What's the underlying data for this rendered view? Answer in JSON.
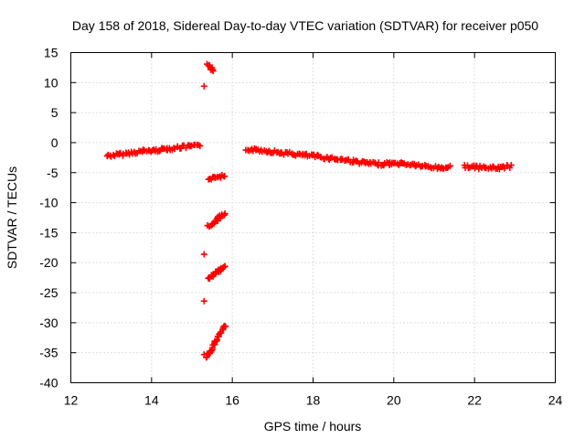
{
  "chart_data": {
    "type": "scatter",
    "title": "Day 158 of 2018, Sidereal Day-to-day VTEC variation (SDTVAR) for receiver p050",
    "xlabel": "GPS time / hours",
    "ylabel": "SDTVAR / TECUs",
    "xlim": [
      12,
      24
    ],
    "ylim": [
      -40,
      15
    ],
    "xticks": [
      "12",
      "14",
      "16",
      "18",
      "20",
      "22",
      "24"
    ],
    "yticks": [
      "15",
      "10",
      "5",
      "0",
      "-5",
      "-10",
      "-15",
      "-20",
      "-25",
      "-30",
      "-35",
      "-40"
    ],
    "grid": true,
    "marker": "+",
    "color": "#ff0000",
    "series": [
      {
        "name": "p050",
        "segments": [
          {
            "x": [
              12.9,
              13.2,
              13.5,
              13.8,
              14.1,
              14.4,
              14.7,
              15.0,
              15.2
            ],
            "y": [
              -2.2,
              -2.0,
              -1.7,
              -1.4,
              -1.3,
              -1.0,
              -0.8,
              -0.6,
              -0.6
            ]
          },
          {
            "x": [
              16.35,
              16.6,
              16.9,
              17.2,
              17.5,
              17.8,
              18.1,
              18.4,
              18.7,
              19.0,
              19.3,
              19.6,
              19.9,
              20.2,
              20.5,
              20.8,
              21.1,
              21.4
            ],
            "y": [
              -1.1,
              -1.2,
              -1.4,
              -1.7,
              -1.9,
              -2.1,
              -2.3,
              -2.6,
              -2.8,
              -3.1,
              -3.4,
              -3.6,
              -3.5,
              -3.5,
              -3.7,
              -4.0,
              -4.2,
              -4.1
            ]
          },
          {
            "x": [
              21.75,
              22.0,
              22.3,
              22.6,
              22.9
            ],
            "y": [
              -3.9,
              -4.1,
              -4.2,
              -4.2,
              -3.9
            ]
          },
          {
            "x": [
              15.38,
              15.43,
              15.48,
              15.53
            ],
            "y": [
              13.2,
              12.8,
              12.3,
              11.8
            ]
          },
          {
            "x": [
              15.42,
              15.55,
              15.7,
              15.82
            ],
            "y": [
              -6.3,
              -5.9,
              -5.6,
              -5.6
            ]
          },
          {
            "x": [
              15.4,
              15.5,
              15.6,
              15.7,
              15.82
            ],
            "y": [
              -14.0,
              -13.5,
              -12.9,
              -12.3,
              -11.8
            ]
          },
          {
            "x": [
              15.4,
              15.5,
              15.6,
              15.7,
              15.82
            ],
            "y": [
              -22.8,
              -22.2,
              -21.7,
              -21.2,
              -20.8
            ]
          },
          {
            "x": [
              15.35,
              15.45,
              15.55,
              15.65,
              15.75,
              15.83
            ],
            "y": [
              -35.7,
              -34.8,
              -33.6,
              -32.3,
              -31.2,
              -30.4
            ]
          },
          {
            "x": [
              15.3
            ],
            "y": [
              9.4
            ]
          },
          {
            "x": [
              15.3
            ],
            "y": [
              -18.6
            ]
          },
          {
            "x": [
              15.3
            ],
            "y": [
              -26.4
            ]
          },
          {
            "x": [
              15.3
            ],
            "y": [
              -35.3
            ]
          }
        ]
      }
    ]
  }
}
